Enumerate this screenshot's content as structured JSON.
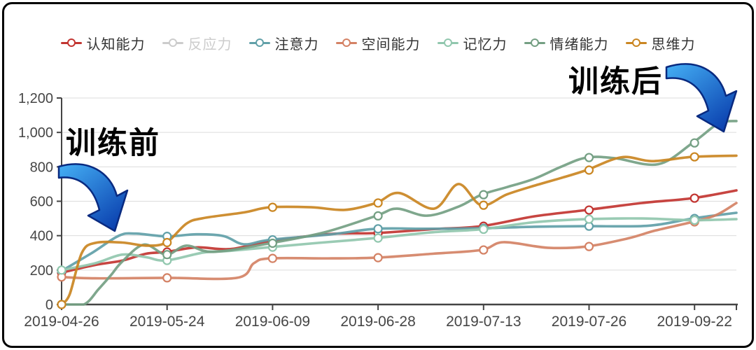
{
  "chart_data": {
    "type": "line",
    "title": "",
    "xlabel": "",
    "ylabel": "",
    "categories": [
      "2019-04-26",
      "2019-05-24",
      "2019-06-09",
      "2019-06-28",
      "2019-07-13",
      "2019-07-26",
      "2019-09-22"
    ],
    "y_ticks": [
      "0",
      "200",
      "400",
      "600",
      "800",
      "1,000",
      "1,200"
    ],
    "ylim": [
      0,
      1200
    ],
    "grid": true,
    "legend_position": "top",
    "smooth": true,
    "series": [
      {
        "name": "认知能力",
        "color": "#c23531",
        "selected": true,
        "values": [
          185,
          305,
          368,
          415,
          455,
          549,
          618
        ],
        "end_value": 663,
        "path": [
          [
            0,
            185
          ],
          [
            0.05,
            230
          ],
          [
            0.09,
            255
          ],
          [
            0.125,
            295
          ],
          [
            0.155,
            305
          ],
          [
            0.2,
            332
          ],
          [
            0.25,
            322
          ],
          [
            0.309,
            368
          ],
          [
            0.4,
            410
          ],
          [
            0.466,
            415
          ],
          [
            0.55,
            438
          ],
          [
            0.622,
            455
          ],
          [
            0.7,
            512
          ],
          [
            0.778,
            549
          ],
          [
            0.86,
            590
          ],
          [
            0.935,
            618
          ],
          [
            1,
            663
          ]
        ]
      },
      {
        "name": "反应力",
        "color": "#cccccc",
        "selected": false,
        "values": null,
        "end_value": null,
        "path": null
      },
      {
        "name": "注意力",
        "color": "#61a0a8",
        "selected": true,
        "values": [
          195,
          396,
          376,
          440,
          443,
          455,
          500
        ],
        "end_value": 533,
        "path": [
          [
            0,
            195
          ],
          [
            0.045,
            300
          ],
          [
            0.085,
            400
          ],
          [
            0.11,
            412
          ],
          [
            0.155,
            396
          ],
          [
            0.2,
            408
          ],
          [
            0.24,
            398
          ],
          [
            0.27,
            350
          ],
          [
            0.309,
            376
          ],
          [
            0.4,
            408
          ],
          [
            0.466,
            440
          ],
          [
            0.54,
            440
          ],
          [
            0.622,
            443
          ],
          [
            0.7,
            452
          ],
          [
            0.778,
            455
          ],
          [
            0.87,
            458
          ],
          [
            0.935,
            500
          ],
          [
            1,
            533
          ]
        ]
      },
      {
        "name": "空间能力",
        "color": "#d48265",
        "selected": true,
        "values": [
          160,
          155,
          268,
          272,
          317,
          337,
          480
        ],
        "end_value": 590,
        "path": [
          [
            0,
            160
          ],
          [
            0.05,
            152
          ],
          [
            0.155,
            155
          ],
          [
            0.26,
            155
          ],
          [
            0.285,
            240
          ],
          [
            0.309,
            268
          ],
          [
            0.4,
            268
          ],
          [
            0.466,
            272
          ],
          [
            0.55,
            295
          ],
          [
            0.622,
            317
          ],
          [
            0.655,
            362
          ],
          [
            0.72,
            330
          ],
          [
            0.778,
            337
          ],
          [
            0.84,
            385
          ],
          [
            0.88,
            430
          ],
          [
            0.935,
            480
          ],
          [
            0.97,
            520
          ],
          [
            1,
            590
          ]
        ]
      },
      {
        "name": "记忆力",
        "color": "#91c7ae",
        "selected": true,
        "values": [
          200,
          256,
          333,
          386,
          437,
          496,
          490
        ],
        "end_value": 496,
        "path": [
          [
            0,
            200
          ],
          [
            0.05,
            240
          ],
          [
            0.09,
            290
          ],
          [
            0.125,
            275
          ],
          [
            0.155,
            256
          ],
          [
            0.21,
            302
          ],
          [
            0.25,
            312
          ],
          [
            0.309,
            333
          ],
          [
            0.38,
            358
          ],
          [
            0.466,
            386
          ],
          [
            0.55,
            420
          ],
          [
            0.622,
            437
          ],
          [
            0.7,
            478
          ],
          [
            0.778,
            496
          ],
          [
            0.86,
            500
          ],
          [
            0.935,
            490
          ],
          [
            1,
            496
          ]
        ]
      },
      {
        "name": "情绪能力",
        "color": "#749f83",
        "selected": true,
        "values": [
          0,
          290,
          356,
          515,
          638,
          854,
          939
        ],
        "end_value": 1066,
        "path": [
          [
            0,
            0
          ],
          [
            0.033,
            0
          ],
          [
            0.055,
            90
          ],
          [
            0.073,
            170
          ],
          [
            0.09,
            250
          ],
          [
            0.122,
            348
          ],
          [
            0.155,
            290
          ],
          [
            0.185,
            342
          ],
          [
            0.225,
            306
          ],
          [
            0.309,
            356
          ],
          [
            0.39,
            420
          ],
          [
            0.466,
            515
          ],
          [
            0.497,
            557
          ],
          [
            0.542,
            516
          ],
          [
            0.59,
            572
          ],
          [
            0.622,
            638
          ],
          [
            0.66,
            682
          ],
          [
            0.7,
            730
          ],
          [
            0.74,
            800
          ],
          [
            0.778,
            854
          ],
          [
            0.82,
            850
          ],
          [
            0.884,
            815
          ],
          [
            0.935,
            939
          ],
          [
            0.97,
            1045
          ],
          [
            0.985,
            1064
          ],
          [
            1,
            1066
          ]
        ]
      },
      {
        "name": "思维力",
        "color": "#ca8622",
        "selected": true,
        "values": [
          0,
          360,
          565,
          590,
          577,
          781,
          858
        ],
        "end_value": 865,
        "path": [
          [
            0,
            0
          ],
          [
            0.012,
            60
          ],
          [
            0.03,
            300
          ],
          [
            0.05,
            358
          ],
          [
            0.09,
            360
          ],
          [
            0.125,
            342
          ],
          [
            0.155,
            360
          ],
          [
            0.185,
            470
          ],
          [
            0.21,
            502
          ],
          [
            0.27,
            535
          ],
          [
            0.309,
            565
          ],
          [
            0.37,
            565
          ],
          [
            0.42,
            550
          ],
          [
            0.466,
            590
          ],
          [
            0.5,
            648
          ],
          [
            0.552,
            557
          ],
          [
            0.588,
            700
          ],
          [
            0.622,
            577
          ],
          [
            0.66,
            640
          ],
          [
            0.7,
            690
          ],
          [
            0.74,
            735
          ],
          [
            0.778,
            781
          ],
          [
            0.83,
            856
          ],
          [
            0.875,
            833
          ],
          [
            0.935,
            858
          ],
          [
            1,
            865
          ]
        ]
      }
    ]
  },
  "annotations": {
    "before": {
      "label": "训练前"
    },
    "after": {
      "label": "训练后"
    }
  },
  "arrow": {
    "fill_start": "#3fa9f5",
    "fill_end": "#0a3fae",
    "stroke": "#092a80"
  },
  "axis": {
    "line_color": "#444444",
    "grid_color": "#dcdcdc",
    "label_color": "#464646"
  }
}
